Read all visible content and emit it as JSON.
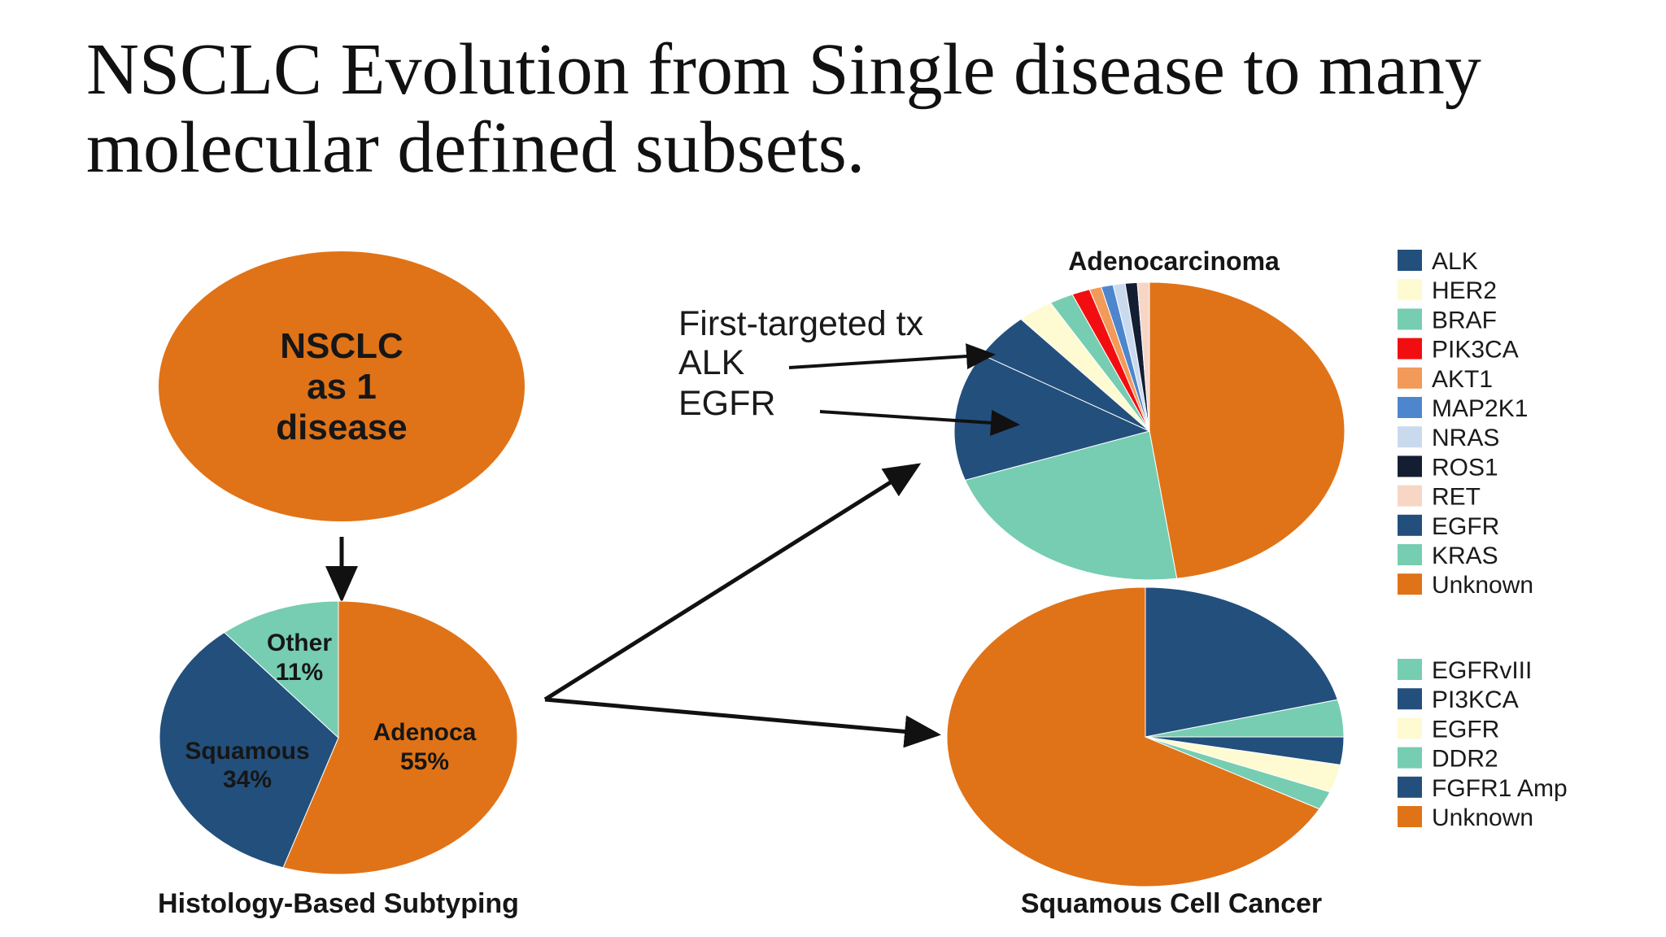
{
  "slide": {
    "title_line1": "NSCLC Evolution from Single disease to many",
    "title_line2": "molecular defined subsets."
  },
  "colors": {
    "orange": "#E07317",
    "navy": "#234F7C",
    "teal": "#76CDB1",
    "cream": "#FEFAD2",
    "red": "#F20E10",
    "light_orange": "#F29A5A",
    "mid_blue": "#4E86CE",
    "pale_blue": "#CADAEE",
    "dark_navy": "#141E33",
    "pale_peach": "#F7D6C6",
    "arrow": "#111111"
  },
  "disease_node": {
    "lines": [
      "NSCLC",
      "as 1",
      "disease"
    ],
    "color": "orange"
  },
  "annotation": {
    "heading": "First-targeted tx",
    "alk": "ALK",
    "egfr": "EGFR"
  },
  "chart_data": [
    {
      "id": "histology",
      "type": "pie",
      "title": "Histology-Based Subtyping",
      "start_angle_deg": 0,
      "direction": "clockwise",
      "slices": [
        {
          "name": "Adenoca",
          "value": 55,
          "label": "55%",
          "color": "orange"
        },
        {
          "name": "Squamous",
          "value": 34,
          "label": "34%",
          "color": "navy"
        },
        {
          "name": "Other",
          "value": 11,
          "label": "11%",
          "color": "teal"
        }
      ]
    },
    {
      "id": "adenocarcinoma",
      "type": "pie",
      "title": "Adenocarcinoma",
      "start_angle_deg": 0,
      "direction": "clockwise",
      "slices": [
        {
          "name": "Unknown",
          "value": 48,
          "color": "orange"
        },
        {
          "name": "KRAS",
          "value": 22,
          "color": "teal"
        },
        {
          "name": "EGFR",
          "value": 14,
          "color": "navy"
        },
        {
          "name": "ALK",
          "value": 5,
          "color": "navy"
        },
        {
          "name": "HER2",
          "value": 3,
          "color": "cream"
        },
        {
          "name": "BRAF",
          "value": 2,
          "color": "teal"
        },
        {
          "name": "PIK3CA",
          "value": 1.5,
          "color": "red"
        },
        {
          "name": "AKT1",
          "value": 1,
          "color": "light_orange"
        },
        {
          "name": "MAP2K1",
          "value": 1,
          "color": "mid_blue"
        },
        {
          "name": "NRAS",
          "value": 1,
          "color": "pale_blue"
        },
        {
          "name": "ROS1",
          "value": 1,
          "color": "dark_navy"
        },
        {
          "name": "RET",
          "value": 1,
          "color": "pale_peach"
        }
      ],
      "legend": [
        "ALK",
        "HER2",
        "BRAF",
        "PIK3CA",
        "AKT1",
        "MAP2K1",
        "NRAS",
        "ROS1",
        "RET",
        "EGFR",
        "KRAS",
        "Unknown"
      ]
    },
    {
      "id": "squamous",
      "type": "pie",
      "title": "Squamous Cell Cancer",
      "start_angle_deg": 0,
      "direction": "clockwise",
      "slices": [
        {
          "name": "FGFR1 Amp",
          "value": 21,
          "color": "navy"
        },
        {
          "name": "DDR2",
          "value": 4,
          "color": "teal"
        },
        {
          "name": "PI3KCA",
          "value": 3,
          "color": "navy"
        },
        {
          "name": "EGFR",
          "value": 3,
          "color": "cream"
        },
        {
          "name": "EGFRvIII",
          "value": 2,
          "color": "teal"
        },
        {
          "name": "Unknown",
          "value": 67,
          "color": "orange"
        }
      ],
      "legend": [
        "EGFRvIII",
        "PI3KCA",
        "EGFR",
        "DDR2",
        "FGFR1 Amp",
        "Unknown"
      ]
    }
  ]
}
